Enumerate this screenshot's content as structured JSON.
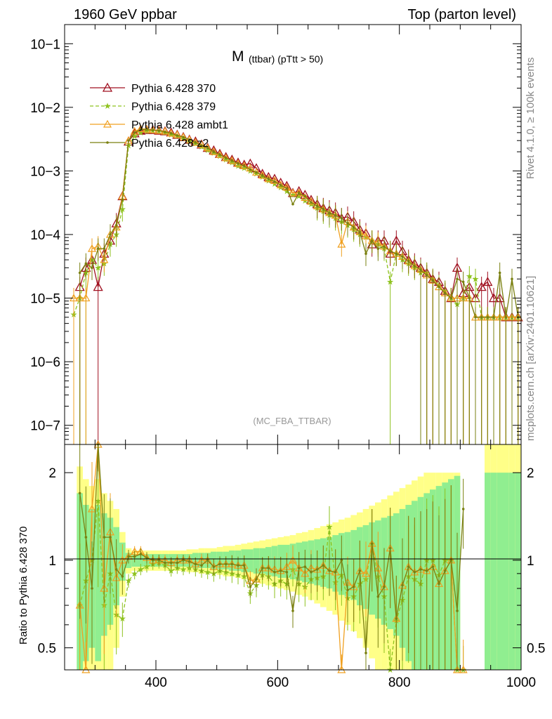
{
  "header": {
    "left_title": "1960 GeV ppbar",
    "right_title": "Top (parton level)"
  },
  "side_labels": {
    "rivet": "Rivet 4.1.0, ≥ 100k events",
    "mcplots": "mcplots.cern.ch [arXiv:2401.10621]"
  },
  "colors": {
    "pythia370": "#a01020",
    "pythia379": "#8ec21e",
    "ambt1": "#f0a020",
    "z2": "#7a8010",
    "band_inner": "#90ee90",
    "band_outer": "#ffff88"
  },
  "chart_data": [
    {
      "type": "line",
      "name": "main",
      "title": "M",
      "title_sub": "(ttbar) (pTtt > 50)",
      "watermark": "(MC_FBA_TTBAR)",
      "xlabel": "",
      "ylabel": "",
      "yscale": "log",
      "xlim": [
        250,
        1000
      ],
      "ylim": [
        5e-08,
        0.2
      ],
      "ytick_labels": [
        "10−7",
        "10−6",
        "10−5",
        "10−4",
        "10−3",
        "10−2",
        "10−1"
      ],
      "legend_position": "top-left",
      "x": [
        265,
        275,
        285,
        295,
        305,
        315,
        325,
        335,
        345,
        355,
        365,
        375,
        385,
        395,
        405,
        415,
        425,
        435,
        445,
        455,
        465,
        475,
        485,
        495,
        505,
        515,
        525,
        535,
        545,
        555,
        565,
        575,
        585,
        595,
        605,
        615,
        625,
        635,
        645,
        655,
        665,
        675,
        685,
        695,
        705,
        715,
        725,
        735,
        745,
        755,
        765,
        775,
        785,
        795,
        805,
        815,
        825,
        835,
        845,
        855,
        865,
        875,
        885,
        895,
        905,
        915,
        925,
        935,
        945,
        955,
        965,
        975,
        985,
        995
      ],
      "series": [
        {
          "name": "Pythia 6.428 370",
          "values": [
            null,
            1.5e-05,
            3e-05,
            4e-05,
            1.5e-05,
            5e-05,
            8e-05,
            0.00015,
            0.0004,
            0.0029,
            0.0039,
            0.0043,
            0.0044,
            0.0044,
            0.0043,
            0.0042,
            0.004,
            0.0037,
            0.0034,
            0.0031,
            0.0029,
            0.0026,
            0.0023,
            0.0021,
            0.00185,
            0.00165,
            0.0015,
            0.00135,
            0.00125,
            0.0013,
            0.0011,
            0.0009,
            0.0008,
            0.00075,
            0.00065,
            0.00058,
            0.00045,
            0.00048,
            0.00042,
            0.00035,
            0.0003,
            0.00026,
            0.00024,
            0.00022,
            0.00018,
            0.00019,
            0.00016,
            0.00012,
            0.000105,
            7e-05,
            8e-05,
            8e-05,
            5e-05,
            8e-05,
            5.5e-05,
            4e-05,
            3.5e-05,
            3e-05,
            2.5e-05,
            2e-05,
            1.8e-05,
            1.3e-05,
            1e-05,
            3e-05,
            1.2e-05,
            1.5e-05,
            1e-05,
            1.5e-05,
            1.8e-05,
            1e-05,
            1e-05,
            5e-06,
            5e-06,
            5e-06
          ]
        },
        {
          "name": "Pythia 6.428 379",
          "values": [
            5.5e-06,
            1e-05,
            2.5e-05,
            4e-05,
            3e-05,
            3.5e-05,
            7e-05,
            0.0001,
            0.00025,
            0.0025,
            0.0035,
            0.004,
            0.0042,
            0.0043,
            0.0042,
            0.004,
            0.0037,
            0.0035,
            0.0032,
            0.0029,
            0.0027,
            0.0024,
            0.0021,
            0.0019,
            0.0017,
            0.0015,
            0.00135,
            0.0012,
            0.0011,
            0.001,
            0.0009,
            0.0008,
            0.0007,
            0.00062,
            0.00055,
            0.00048,
            0.00042,
            0.0004,
            0.00034,
            0.0003,
            0.00026,
            0.00023,
            0.0002,
            0.00018,
            0.00016,
            0.00014,
            0.00012,
            0.0001,
            9e-05,
            8e-05,
            7e-05,
            6e-05,
            1.8e-05,
            5e-05,
            4e-05,
            3.5e-05,
            3e-05,
            2.5e-05,
            2.5e-05,
            2e-05,
            1.6e-05,
            1.3e-05,
            1e-05,
            8e-06,
            1e-05,
            2.2e-05,
            2e-05,
            5e-06,
            5e-06,
            5e-06,
            5e-06,
            5e-06,
            5e-06,
            5e-06
          ]
        },
        {
          "name": "Pythia 6.428 ambt1",
          "values": [
            1e-05,
            1e-05,
            1e-05,
            6e-05,
            6.5e-05,
            4e-05,
            0.0001,
            0.00013,
            0.0004,
            0.003,
            0.0042,
            0.0046,
            0.0045,
            0.0044,
            0.0043,
            0.0042,
            0.0039,
            0.0037,
            0.0034,
            0.0031,
            0.0028,
            0.0026,
            0.0023,
            0.002,
            0.0018,
            0.0016,
            0.00145,
            0.0013,
            0.0012,
            0.0011,
            0.00095,
            0.00085,
            0.00075,
            0.0007,
            0.0006,
            0.00055,
            0.00045,
            0.00045,
            0.00038,
            0.00033,
            0.00028,
            0.00025,
            0.00022,
            0.0002,
            7e-05,
            0.00016,
            0.00013,
            0.00011,
            9.5e-05,
            8e-05,
            7.5e-05,
            6.5e-05,
            5.5e-05,
            5e-05,
            4.5e-05,
            3.8e-05,
            3.2e-05,
            2.8e-05,
            2.3e-05,
            1.9e-05,
            1.5e-05,
            1.2e-05,
            1e-05,
            1e-05,
            1e-05,
            1e-05,
            5e-06,
            5e-06,
            5e-06,
            5e-06,
            5e-06,
            5e-06,
            5e-06,
            5e-06
          ]
        },
        {
          "name": "Pythia 6.428 z2",
          "values": [
            null,
            2.5e-05,
            3.5e-05,
            3e-05,
            6e-05,
            6e-05,
            0.0001,
            0.00014,
            0.00035,
            0.003,
            0.004,
            0.0045,
            0.0045,
            0.0044,
            0.0043,
            0.0041,
            0.0039,
            0.0036,
            0.0034,
            0.0031,
            0.0028,
            0.0025,
            0.0023,
            0.002,
            0.0018,
            0.0016,
            0.00145,
            0.0013,
            0.0012,
            0.00105,
            0.00095,
            0.00085,
            0.00075,
            0.00068,
            0.0006,
            0.00053,
            0.0003,
            0.00045,
            0.0004,
            0.00032,
            0.00028,
            0.00025,
            0.00022,
            0.0002,
            0.00018,
            0.00015,
            0.00013,
            0.00011,
            5e-05,
            8e-05,
            6e-05,
            6.5e-05,
            5.5e-05,
            5e-05,
            4.5e-05,
            3.8e-05,
            3.2e-05,
            2.8e-05,
            2.3e-05,
            1.9e-05,
            1.5e-05,
            1.2e-05,
            1e-05,
            2e-05,
            1.8e-05,
            1e-05,
            5e-06,
            5e-06,
            5e-06,
            5e-06,
            2.5e-05,
            5e-06,
            2e-05,
            5e-06
          ]
        }
      ]
    },
    {
      "type": "line",
      "name": "ratio",
      "ylabel": "Ratio to Pythia 6.428 370",
      "yscale": "log",
      "xlim": [
        250,
        1000
      ],
      "ylim": [
        0.42,
        2.5
      ],
      "ytick_labels": [
        "0.5",
        "1",
        "2"
      ],
      "xtick_labels": [
        "400",
        "600",
        "800",
        "1000"
      ],
      "reference": 1.0,
      "bands": {
        "x": [
          275,
          285,
          295,
          305,
          315,
          325,
          335,
          345,
          355,
          365,
          375,
          385,
          395,
          405,
          415,
          425,
          435,
          445,
          455,
          465,
          475,
          485,
          495,
          505,
          515,
          525,
          535,
          545,
          555,
          565,
          575,
          585,
          595,
          605,
          615,
          625,
          635,
          645,
          655,
          665,
          675,
          685,
          695,
          705,
          715,
          725,
          735,
          745,
          755,
          765,
          775,
          785,
          795,
          805,
          815,
          825,
          835,
          845,
          855,
          865,
          875,
          885,
          895,
          905,
          915,
          925,
          935,
          945,
          955,
          965,
          975,
          985,
          995
        ],
        "inner_half": [
          0.7,
          0.55,
          0.5,
          0.55,
          0.45,
          0.4,
          0.3,
          0.15,
          0.06,
          0.05,
          0.05,
          0.05,
          0.05,
          0.05,
          0.05,
          0.05,
          0.05,
          0.05,
          0.05,
          0.06,
          0.06,
          0.06,
          0.07,
          0.07,
          0.07,
          0.08,
          0.08,
          0.09,
          0.09,
          0.1,
          0.1,
          0.11,
          0.12,
          0.13,
          0.13,
          0.14,
          0.15,
          0.16,
          0.17,
          0.18,
          0.19,
          0.2,
          0.22,
          0.24,
          0.25,
          0.27,
          0.3,
          0.32,
          0.35,
          0.37,
          0.4,
          0.42,
          0.45,
          0.5,
          0.55,
          0.6,
          0.65,
          0.7,
          0.75,
          0.8,
          0.85,
          0.9,
          0.95,
          null,
          null,
          null,
          null,
          1.0,
          1.0,
          1.0,
          1.0,
          1.0,
          1.0
        ],
        "outer_half": [
          1.1,
          0.9,
          0.8,
          0.9,
          0.7,
          0.6,
          0.5,
          0.25,
          0.1,
          0.08,
          0.08,
          0.08,
          0.08,
          0.08,
          0.08,
          0.08,
          0.08,
          0.08,
          0.09,
          0.09,
          0.1,
          0.1,
          0.1,
          0.11,
          0.12,
          0.12,
          0.13,
          0.14,
          0.15,
          0.16,
          0.17,
          0.18,
          0.19,
          0.2,
          0.21,
          0.22,
          0.24,
          0.25,
          0.27,
          0.29,
          0.31,
          0.33,
          0.35,
          0.38,
          0.4,
          0.43,
          0.46,
          0.5,
          0.54,
          0.58,
          0.62,
          0.67,
          0.72,
          0.77,
          0.82,
          0.88,
          0.94,
          1.0,
          1.0,
          1.0,
          1.0,
          1.0,
          1.0,
          null,
          null,
          null,
          null,
          1.5,
          1.5,
          1.5,
          1.5,
          1.5,
          1.5
        ]
      },
      "series": [
        {
          "name": "Pythia 6.428 379",
          "x": [
            275,
            285,
            295,
            305,
            315,
            325,
            335,
            345,
            355,
            365,
            375,
            385,
            395,
            405,
            415,
            425,
            435,
            445,
            455,
            465,
            475,
            485,
            495,
            505,
            515,
            525,
            535,
            545,
            555,
            565,
            575,
            585,
            595,
            605,
            615,
            625,
            635,
            645,
            655,
            665,
            675,
            685,
            695,
            705,
            715,
            725,
            735,
            745,
            755,
            765,
            775,
            785,
            795,
            805,
            815,
            825,
            835,
            845,
            855,
            865,
            875,
            885,
            895,
            905
          ],
          "values": [
            0.7,
            0.85,
            1.0,
            1.6,
            0.7,
            0.9,
            0.65,
            0.63,
            0.85,
            0.9,
            0.93,
            0.95,
            0.97,
            0.98,
            0.96,
            0.92,
            0.94,
            0.93,
            0.94,
            0.93,
            0.92,
            0.91,
            0.9,
            0.92,
            0.91,
            0.9,
            0.89,
            0.88,
            0.77,
            0.82,
            0.89,
            0.88,
            0.83,
            0.85,
            0.83,
            0.93,
            0.83,
            0.81,
            0.86,
            0.87,
            0.88,
            1.3,
            0.84,
            0.89,
            0.74,
            0.75,
            0.83,
            0.86,
            1.14,
            0.88,
            0.75,
            0.36,
            0.62,
            0.73,
            0.88,
            0.86,
            0.83,
            1.0,
            1.0,
            0.89,
            1.0,
            1.0,
            0.27,
            0.4
          ]
        },
        {
          "name": "Pythia 6.428 ambt1",
          "x": [
            275,
            285,
            295,
            305,
            315,
            325,
            335,
            345,
            355,
            365,
            375,
            385,
            395,
            405,
            415,
            425,
            435,
            445,
            455,
            465,
            475,
            485,
            495,
            505,
            515,
            525,
            535,
            545,
            555,
            565,
            575,
            585,
            595,
            605,
            615,
            625,
            635,
            645,
            655,
            665,
            675,
            685,
            695,
            705,
            715,
            725,
            735,
            745,
            755,
            765,
            775,
            785,
            795,
            805,
            815,
            825,
            835,
            845,
            855,
            865,
            875,
            885,
            895,
            905
          ],
          "values": [
            0.7,
            0.35,
            1.5,
            4.3,
            0.8,
            1.25,
            0.87,
            1.0,
            1.03,
            1.07,
            1.07,
            1.02,
            1.0,
            1.0,
            1.0,
            0.98,
            1.0,
            1.0,
            1.0,
            0.97,
            1.0,
            1.0,
            0.95,
            0.97,
            0.97,
            0.97,
            0.96,
            0.96,
            0.85,
            0.86,
            0.94,
            0.94,
            0.93,
            0.92,
            0.95,
            1.0,
            0.94,
            0.9,
            0.94,
            0.93,
            0.96,
            0.92,
            0.91,
            0.39,
            0.84,
            0.81,
            0.92,
            0.9,
            1.14,
            0.94,
            0.81,
            1.1,
            0.63,
            0.82,
            0.95,
            0.91,
            0.93,
            0.92,
            0.95,
            0.83,
            0.92,
            1.0,
            0.33,
            0.42
          ]
        },
        {
          "name": "Pythia 6.428 z2",
          "x": [
            275,
            285,
            295,
            305,
            315,
            325,
            335,
            345,
            355,
            365,
            375,
            385,
            395,
            405,
            415,
            425,
            435,
            445,
            455,
            465,
            475,
            485,
            495,
            505,
            515,
            525,
            535,
            545,
            555,
            565,
            575,
            585,
            595,
            605,
            615,
            625,
            635,
            645,
            655,
            665,
            675,
            685,
            695,
            705,
            715,
            725,
            735,
            745,
            755,
            765,
            775,
            785,
            795,
            805,
            815,
            825,
            835,
            845,
            855,
            865,
            875,
            885,
            895,
            905
          ],
          "values": [
            1.7,
            1.2,
            0.8,
            4.0,
            1.2,
            1.2,
            0.93,
            0.88,
            1.03,
            1.03,
            1.05,
            1.02,
            1.0,
            1.0,
            0.98,
            0.98,
            0.98,
            1.0,
            0.99,
            0.97,
            0.96,
            1.0,
            0.95,
            0.97,
            0.97,
            0.97,
            0.96,
            0.96,
            0.81,
            0.86,
            0.94,
            0.94,
            0.91,
            0.92,
            0.91,
            0.67,
            0.94,
            0.95,
            0.91,
            0.93,
            0.96,
            0.92,
            0.91,
            1.0,
            0.79,
            0.81,
            0.92,
            0.48,
            1.14,
            0.75,
            0.81,
            1.1,
            0.63,
            0.82,
            0.95,
            0.91,
            0.93,
            0.92,
            0.95,
            0.83,
            0.92,
            1.0,
            0.67,
            1.5
          ]
        }
      ]
    }
  ]
}
